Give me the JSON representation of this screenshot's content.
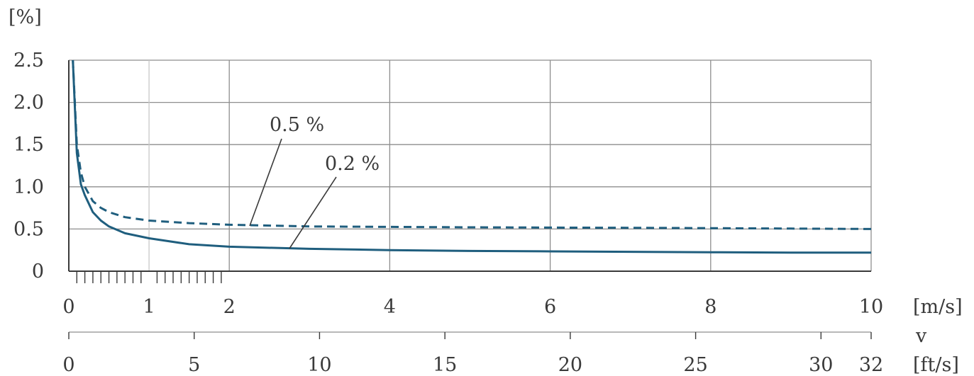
{
  "chart_data": {
    "type": "line",
    "ylabel": "[%]",
    "y_ticks": [
      "0",
      "0.5",
      "1.0",
      "1.5",
      "2.0",
      "2.5"
    ],
    "ylim": [
      0,
      2.5
    ],
    "x_unit_primary": "[m/s]",
    "x_ticks_primary": [
      "0",
      "1",
      "2",
      "4",
      "6",
      "8",
      "10"
    ],
    "xlim_primary": [
      0,
      10
    ],
    "x_variable": "v",
    "x_unit_secondary": "[ft/s]",
    "x_ticks_secondary": [
      "0",
      "5",
      "10",
      "15",
      "20",
      "25",
      "30",
      "32"
    ],
    "xlim_secondary": [
      0,
      32
    ],
    "grid": true,
    "series": [
      {
        "name": "0.5 %",
        "style": "dashed",
        "color": "#1f5e7e",
        "x": [
          0.05,
          0.1,
          0.15,
          0.2,
          0.3,
          0.4,
          0.5,
          0.7,
          1,
          1.5,
          2,
          3,
          4,
          5,
          6,
          7,
          8,
          9,
          10
        ],
        "y": [
          2.5,
          1.5,
          1.17,
          1.0,
          0.83,
          0.75,
          0.7,
          0.64,
          0.6,
          0.57,
          0.55,
          0.53,
          0.525,
          0.52,
          0.517,
          0.514,
          0.51,
          0.505,
          0.5
        ]
      },
      {
        "name": "0.2 %",
        "style": "solid",
        "color": "#1f5e7e",
        "x": [
          0.05,
          0.1,
          0.15,
          0.2,
          0.3,
          0.4,
          0.5,
          0.7,
          1,
          1.5,
          2,
          3,
          4,
          5,
          6,
          7,
          8,
          9,
          10
        ],
        "y": [
          2.5,
          1.4,
          1.03,
          0.9,
          0.7,
          0.6,
          0.53,
          0.45,
          0.39,
          0.32,
          0.29,
          0.265,
          0.25,
          0.24,
          0.235,
          0.23,
          0.225,
          0.22,
          0.22
        ]
      }
    ]
  }
}
